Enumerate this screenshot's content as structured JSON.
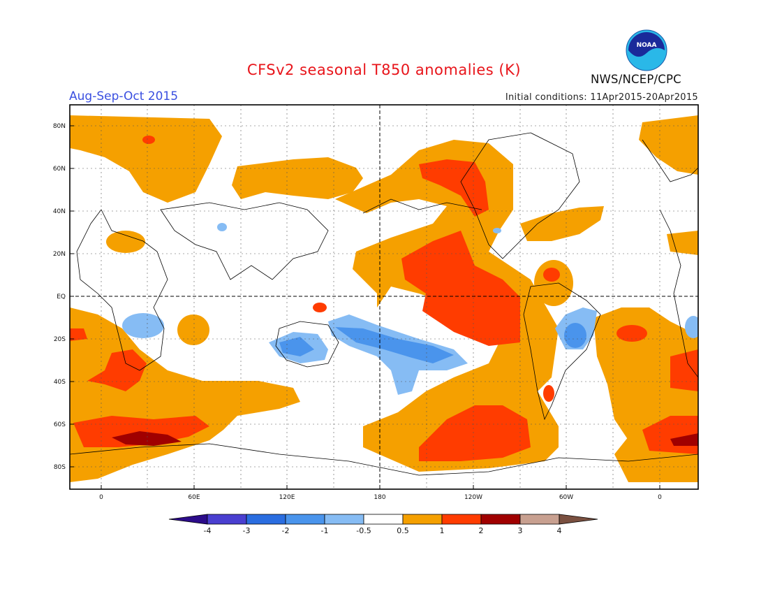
{
  "header": {
    "title": "CFSv2 seasonal T850 anomalies (K)",
    "period": "Aug-Sep-Oct 2015",
    "initial_conditions": "Initial conditions: 11Apr2015-20Apr2015",
    "agency": "NWS/NCEP/CPC",
    "logo_text": "NOAA"
  },
  "axes": {
    "lat_labels": [
      "80N",
      "60N",
      "40N",
      "20N",
      "EQ",
      "20S",
      "40S",
      "60S",
      "80S"
    ],
    "lon_labels": [
      "0",
      "60E",
      "120E",
      "180",
      "120W",
      "60W",
      "0"
    ]
  },
  "colorbar": {
    "labels": [
      "-4",
      "-3",
      "-2",
      "-1",
      "-0.5",
      "0.5",
      "1",
      "2",
      "3",
      "4"
    ],
    "colors": [
      "#2c0c8a",
      "#4a3fd0",
      "#2a6de0",
      "#4a94ec",
      "#86bcf4",
      "#ffffff",
      "#f5a000",
      "#ff3c00",
      "#a00000",
      "#c8a090",
      "#7a5040"
    ]
  },
  "colors": {
    "title": "#e8141a",
    "period": "#3a4fe0",
    "level_1": "#f5a000",
    "level_2": "#ff3c00",
    "level_3": "#a00000",
    "neg_1": "#86bcf4",
    "neg_2": "#4a94ec"
  }
}
